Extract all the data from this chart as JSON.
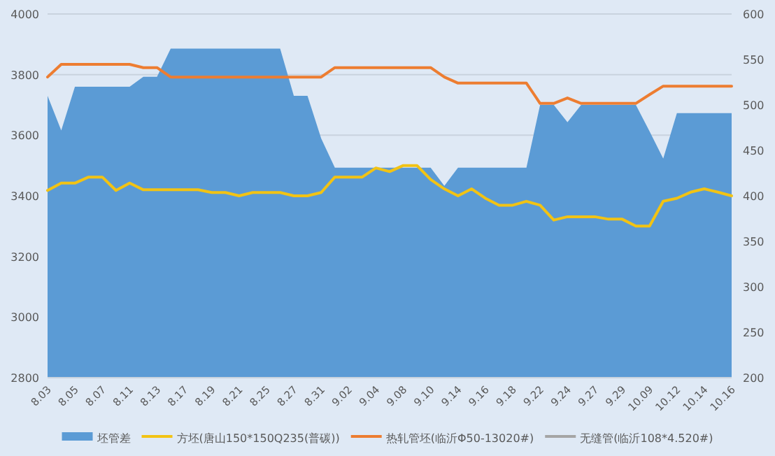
{
  "chart_data": {
    "type": "line",
    "categories": [
      "8.03",
      null,
      "8.05",
      null,
      "8.07",
      null,
      "8.11",
      null,
      "8.13",
      null,
      "8.17",
      null,
      "8.19",
      null,
      "8.21",
      null,
      "8.25",
      null,
      "8.27",
      null,
      "8.31",
      null,
      "9.02",
      null,
      "9.04",
      null,
      "9.08",
      null,
      "9.10",
      null,
      "9.14",
      null,
      "9.16",
      null,
      "9.18",
      null,
      "9.22",
      null,
      "9.24",
      null,
      "9.27",
      null,
      "9.29",
      null,
      "10.09",
      null,
      "10.12",
      null,
      "10.14",
      null,
      "10.16"
    ],
    "series": [
      {
        "name": "坯管差",
        "type": "area",
        "axis": "y2",
        "color": "#5b9bd5",
        "values": [
          510,
          472,
          520,
          520,
          520,
          520,
          520,
          531,
          531,
          562,
          562,
          562,
          562,
          562,
          562,
          562,
          562,
          562,
          510,
          510,
          463,
          431,
          431,
          431,
          431,
          431,
          431,
          431,
          431,
          411,
          431,
          431,
          431,
          431,
          431,
          431,
          500,
          500,
          481,
          500,
          500,
          500,
          500,
          500,
          471,
          441,
          491,
          491,
          491,
          491,
          491
        ]
      },
      {
        "name": "方坯(唐山150*150Q235(普碳))",
        "type": "line",
        "color": "#f2c314",
        "values": [
          3418,
          3442,
          3442,
          3462,
          3462,
          3418,
          3442,
          3420,
          3420,
          3420,
          3420,
          3420,
          3411,
          3411,
          3400,
          3411,
          3411,
          3411,
          3400,
          3400,
          3411,
          3462,
          3462,
          3462,
          3492,
          3480,
          3500,
          3500,
          3454,
          3423,
          3400,
          3423,
          3392,
          3369,
          3369,
          3382,
          3369,
          3320,
          3331,
          3331,
          3331,
          3323,
          3323,
          3300,
          3300,
          3382,
          3392,
          3412,
          3423,
          3412,
          3400
        ]
      },
      {
        "name": "热轧管坯(临沂Φ50-13020#)",
        "type": "line",
        "color": "#ed7d31",
        "values": [
          3792,
          3834,
          3834,
          3834,
          3834,
          3834,
          3834,
          3823,
          3823,
          3792,
          3792,
          3792,
          3792,
          3792,
          3792,
          3792,
          3792,
          3792,
          3792,
          3792,
          3792,
          3823,
          3823,
          3823,
          3823,
          3823,
          3823,
          3823,
          3823,
          3792,
          3772,
          3772,
          3772,
          3772,
          3772,
          3772,
          3705,
          3705,
          3723,
          3705,
          3705,
          3705,
          3705,
          3705,
          3734,
          3762,
          3762,
          3762,
          3762,
          3762,
          3762
        ]
      },
      {
        "name": "无缝管(临沂108*4.520#)",
        "type": "line",
        "color": "#a5a5a5",
        "values": [
          null,
          null,
          null,
          null,
          null,
          null,
          null,
          null,
          null,
          null,
          null,
          null,
          null,
          null,
          null,
          null,
          null,
          null,
          null,
          null,
          null,
          null,
          null,
          null,
          null,
          null,
          null,
          null,
          null,
          null,
          null,
          null,
          null,
          null,
          null,
          null,
          null,
          null,
          null,
          null,
          null,
          null,
          null,
          null,
          null,
          null,
          null,
          null,
          null,
          null,
          null
        ]
      }
    ],
    "ylim": [
      2800,
      4000
    ],
    "yticks": [
      2800,
      3000,
      3200,
      3400,
      3600,
      3800,
      4000
    ],
    "y2lim": [
      200,
      600
    ],
    "y2ticks": [
      200,
      250,
      300,
      350,
      400,
      450,
      500,
      550,
      600
    ],
    "grid": "y",
    "legend": "bottom"
  }
}
